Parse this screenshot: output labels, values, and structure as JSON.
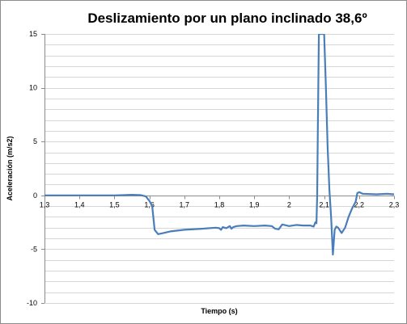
{
  "chart_data": {
    "type": "line",
    "title": "Deslizamiento por un plano inclinado 38,6º",
    "xlabel": "Tiempo (s)",
    "ylabel": "Aceleración (m/s2)",
    "xlim": [
      1.3,
      2.3
    ],
    "ylim": [
      -10,
      15
    ],
    "x_ticks": [
      1.3,
      1.4,
      1.5,
      1.6,
      1.7,
      1.8,
      1.9,
      2.0,
      2.1,
      2.2,
      2.3
    ],
    "x_tick_labels": [
      "1,3",
      "1,4",
      "1,5",
      "1,6",
      "1,7",
      "1,8",
      "1,9",
      "2",
      "2,1",
      "2,2",
      "2,3"
    ],
    "y_ticks": [
      -10,
      -5,
      0,
      5,
      10,
      15
    ],
    "y_tick_labels": [
      "-10",
      "-5",
      "0",
      "5",
      "10",
      "15"
    ],
    "grid": true,
    "legend": false,
    "series_color": "#4a7ebb",
    "series": [
      {
        "x": [
          1.3,
          1.35,
          1.4,
          1.45,
          1.5,
          1.55,
          1.575,
          1.59,
          1.595,
          1.6,
          1.608,
          1.615,
          1.625,
          1.64,
          1.66,
          1.7,
          1.75,
          1.79,
          1.8,
          1.805,
          1.81,
          1.82,
          1.83,
          1.835,
          1.84,
          1.85,
          1.87,
          1.9,
          1.93,
          1.95,
          1.96,
          1.97,
          1.98,
          2.0,
          2.02,
          2.04,
          2.06,
          2.07,
          2.075,
          2.078,
          2.08,
          2.082,
          2.085,
          2.09,
          2.095,
          2.1,
          2.105,
          2.11,
          2.115,
          2.12,
          2.125,
          2.13,
          2.135,
          2.14,
          2.15,
          2.16,
          2.17,
          2.18,
          2.19,
          2.195,
          2.2,
          2.21,
          2.25,
          2.28,
          2.3
        ],
        "y": [
          0,
          0,
          0,
          0,
          0,
          0.05,
          0.02,
          -0.1,
          -0.3,
          -0.5,
          -1.0,
          -3.2,
          -3.6,
          -3.5,
          -3.35,
          -3.2,
          -3.1,
          -3.0,
          -3.05,
          -3.2,
          -2.95,
          -3.05,
          -2.85,
          -3.1,
          -2.95,
          -2.85,
          -2.8,
          -2.85,
          -2.8,
          -2.85,
          -3.1,
          -3.15,
          -2.7,
          -2.85,
          -2.75,
          -2.8,
          -2.8,
          -2.9,
          -2.5,
          -2.6,
          0,
          6,
          15,
          15,
          15,
          15,
          10,
          4.5,
          0.5,
          -2.0,
          -5.5,
          -3.2,
          -2.9,
          -3.0,
          -3.5,
          -3.0,
          -2.0,
          -1.2,
          -0.6,
          0.2,
          0.3,
          0.15,
          0.1,
          0.15,
          0.1
        ]
      }
    ]
  }
}
